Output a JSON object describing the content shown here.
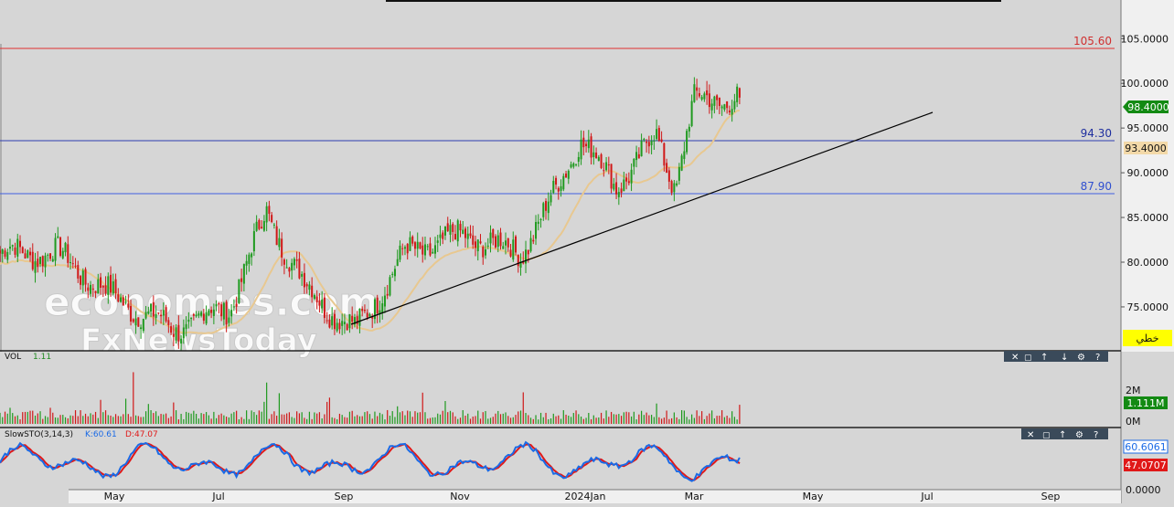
{
  "price_axis": {
    "ticks": [
      "105.0000",
      "100.0000",
      "95.0000",
      "90.0000",
      "85.0000",
      "80.0000",
      "75.0000"
    ],
    "last_price": "98.4000",
    "ma_price": "93.4000",
    "hline_labels": [
      "105.60",
      "94.30",
      "87.90"
    ],
    "line_tool_label": "خطي"
  },
  "watermark": {
    "line1": "economies.com",
    "line2": "FxNewsToday"
  },
  "volume_panel": {
    "title": "VOL",
    "value": "1.11",
    "ticks": [
      "2M",
      "0M"
    ],
    "current": "1.111M"
  },
  "stoch_panel": {
    "title": "SlowSTO(3,14,3)",
    "k_label": "K:60.61",
    "d_label": "D:47.07",
    "k_value": "60.6061",
    "d_value": "47.0707",
    "zero": "0.0000"
  },
  "time_axis": {
    "labels": [
      "May",
      "Jul",
      "Sep",
      "Nov",
      "2024Jan",
      "Mar",
      "May",
      "Jul",
      "Sep"
    ]
  },
  "colors": {
    "background": "#d6d6d6",
    "up_candle": "#1f9a1f",
    "down_candle": "#d01818",
    "resistance": "#e03030",
    "support": "#2f3fb0",
    "moving_average": "#e8c890",
    "trendline": "#000000",
    "stoch_k": "#1a6ae6",
    "stoch_d": "#e01818",
    "axis_panel": "#f0f0f0",
    "badge_green": "#138a13",
    "badge_yellow": "#ffff00"
  },
  "chart_data": {
    "type": "candlestick",
    "price_key_points": [
      {
        "date": "2023-04-01",
        "price": 81
      },
      {
        "date": "2023-05-01",
        "price": 76
      },
      {
        "date": "2023-06-01",
        "price": 72.5
      },
      {
        "date": "2023-07-01",
        "price": 75
      },
      {
        "date": "2023-07-20",
        "price": 85.5
      },
      {
        "date": "2023-08-10",
        "price": 77
      },
      {
        "date": "2023-09-05",
        "price": 72.3
      },
      {
        "date": "2023-10-01",
        "price": 81
      },
      {
        "date": "2023-11-01",
        "price": 83
      },
      {
        "date": "2023-12-01",
        "price": 81
      },
      {
        "date": "2023-12-20",
        "price": 88
      },
      {
        "date": "2024-01-01",
        "price": 94
      },
      {
        "date": "2024-01-20",
        "price": 88.5
      },
      {
        "date": "2024-02-10",
        "price": 94
      },
      {
        "date": "2024-02-20",
        "price": 88.5
      },
      {
        "date": "2024-03-01",
        "price": 98
      },
      {
        "date": "2024-03-25",
        "price": 98.4
      }
    ],
    "horizontal_levels": [
      105.6,
      94.3,
      87.9
    ],
    "y_range": [
      70.5,
      108.5
    ],
    "volume_range_M": [
      0,
      3.5
    ],
    "stoch_range": [
      0,
      100
    ]
  }
}
